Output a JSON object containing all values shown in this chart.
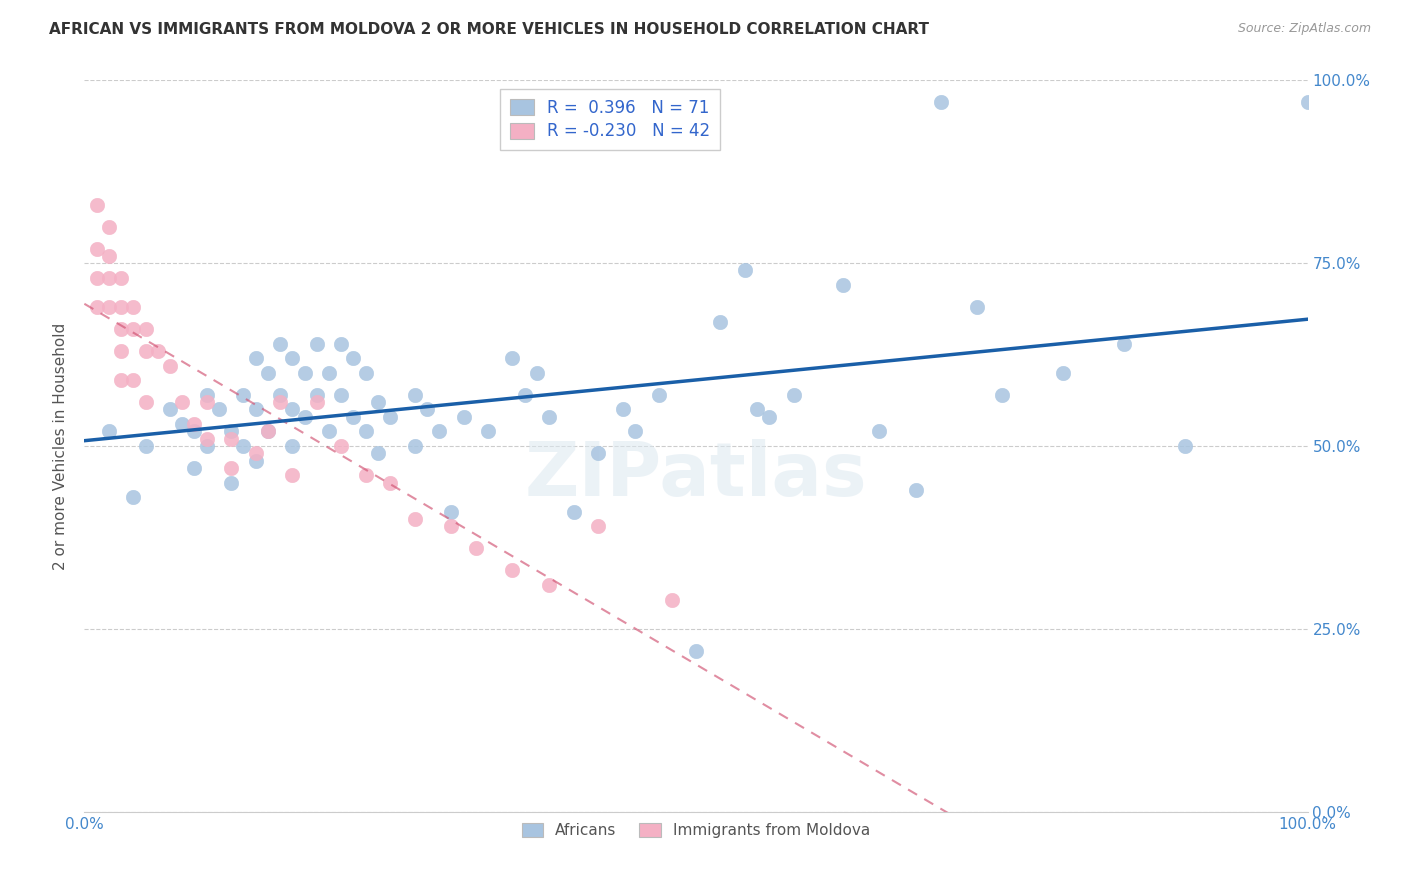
{
  "title": "AFRICAN VS IMMIGRANTS FROM MOLDOVA 2 OR MORE VEHICLES IN HOUSEHOLD CORRELATION CHART",
  "source": "Source: ZipAtlas.com",
  "ylabel": "2 or more Vehicles in Household",
  "r_african": 0.396,
  "n_african": 71,
  "r_moldova": -0.23,
  "n_moldova": 42,
  "xlim": [
    0.0,
    1.0
  ],
  "ylim": [
    0.0,
    1.0
  ],
  "xtick_labels": [
    "0.0%",
    "100.0%"
  ],
  "ytick_labels": [
    "0.0%",
    "25.0%",
    "50.0%",
    "75.0%",
    "100.0%"
  ],
  "ytick_positions": [
    0.0,
    0.25,
    0.5,
    0.75,
    1.0
  ],
  "african_color": "#a8c4e0",
  "moldova_color": "#f4b0c4",
  "african_line_color": "#1a5fa8",
  "moldova_line_color": "#d05070",
  "watermark": "ZIPatlas",
  "african_x": [
    0.02,
    0.04,
    0.05,
    0.07,
    0.08,
    0.09,
    0.09,
    0.1,
    0.1,
    0.11,
    0.12,
    0.12,
    0.13,
    0.13,
    0.14,
    0.14,
    0.14,
    0.15,
    0.15,
    0.16,
    0.16,
    0.17,
    0.17,
    0.17,
    0.18,
    0.18,
    0.19,
    0.19,
    0.2,
    0.2,
    0.21,
    0.21,
    0.22,
    0.22,
    0.23,
    0.23,
    0.24,
    0.24,
    0.25,
    0.27,
    0.27,
    0.28,
    0.29,
    0.3,
    0.31,
    0.33,
    0.35,
    0.36,
    0.37,
    0.38,
    0.4,
    0.42,
    0.44,
    0.45,
    0.47,
    0.5,
    0.52,
    0.54,
    0.55,
    0.56,
    0.58,
    0.62,
    0.65,
    0.68,
    0.7,
    0.73,
    0.75,
    0.8,
    0.85,
    0.9,
    1.0
  ],
  "african_y": [
    0.52,
    0.43,
    0.5,
    0.55,
    0.53,
    0.52,
    0.47,
    0.57,
    0.5,
    0.55,
    0.52,
    0.45,
    0.57,
    0.5,
    0.62,
    0.55,
    0.48,
    0.6,
    0.52,
    0.64,
    0.57,
    0.62,
    0.55,
    0.5,
    0.6,
    0.54,
    0.64,
    0.57,
    0.6,
    0.52,
    0.64,
    0.57,
    0.62,
    0.54,
    0.6,
    0.52,
    0.56,
    0.49,
    0.54,
    0.57,
    0.5,
    0.55,
    0.52,
    0.41,
    0.54,
    0.52,
    0.62,
    0.57,
    0.6,
    0.54,
    0.41,
    0.49,
    0.55,
    0.52,
    0.57,
    0.22,
    0.67,
    0.74,
    0.55,
    0.54,
    0.57,
    0.72,
    0.52,
    0.44,
    0.97,
    0.69,
    0.57,
    0.6,
    0.64,
    0.5,
    0.97
  ],
  "moldova_x": [
    0.01,
    0.01,
    0.01,
    0.01,
    0.02,
    0.02,
    0.02,
    0.02,
    0.03,
    0.03,
    0.03,
    0.03,
    0.03,
    0.04,
    0.04,
    0.04,
    0.05,
    0.05,
    0.05,
    0.06,
    0.07,
    0.08,
    0.09,
    0.1,
    0.1,
    0.12,
    0.12,
    0.14,
    0.15,
    0.16,
    0.17,
    0.19,
    0.21,
    0.23,
    0.25,
    0.27,
    0.3,
    0.32,
    0.35,
    0.38,
    0.42,
    0.48
  ],
  "moldova_y": [
    0.83,
    0.77,
    0.73,
    0.69,
    0.8,
    0.76,
    0.73,
    0.69,
    0.73,
    0.69,
    0.66,
    0.63,
    0.59,
    0.69,
    0.66,
    0.59,
    0.66,
    0.63,
    0.56,
    0.63,
    0.61,
    0.56,
    0.53,
    0.56,
    0.51,
    0.51,
    0.47,
    0.49,
    0.52,
    0.56,
    0.46,
    0.56,
    0.5,
    0.46,
    0.45,
    0.4,
    0.39,
    0.36,
    0.33,
    0.31,
    0.39,
    0.29
  ]
}
